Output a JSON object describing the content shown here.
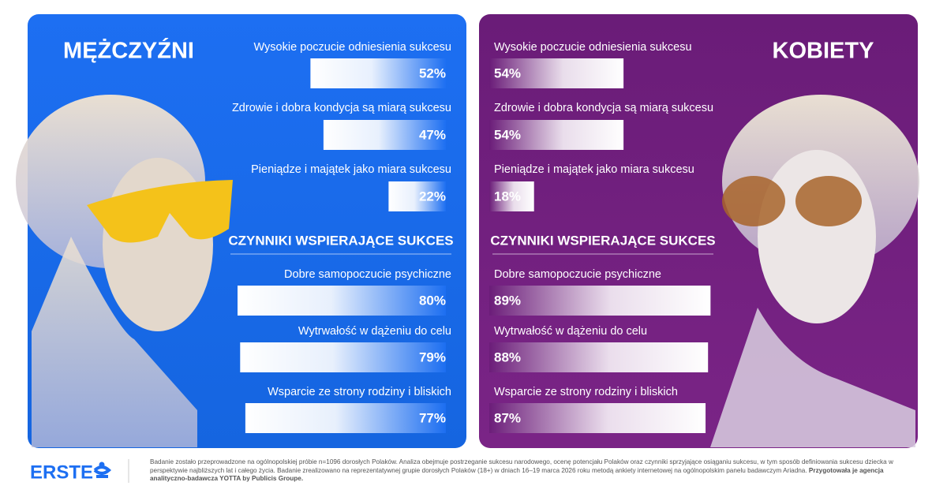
{
  "panels": [
    {
      "title": "MĘŻCZYŹNI",
      "measures": {
        "labels": [
          "Wysokie poczucie odniesienia sukcesu",
          "Zdrowie i dobra kondycja są miarą sukcesu",
          "Pieniądze i majątek jako miara sukcesu"
        ],
        "values": [
          52,
          47,
          22
        ],
        "value_labels": [
          "52%",
          "47%",
          "22%"
        ]
      },
      "factors_heading": "CZYNNIKI WSPIERAJĄCE SUKCES",
      "factors": {
        "labels": [
          "Dobre samopoczucie psychiczne",
          "Wytrwałość w dążeniu do celu",
          "Wsparcie ze strony rodziny i bliskich"
        ],
        "values": [
          80,
          79,
          77
        ],
        "value_labels": [
          "80%",
          "79%",
          "77%"
        ]
      }
    },
    {
      "title": "KOBIETY",
      "measures": {
        "labels": [
          "Wysokie poczucie odniesienia sukcesu",
          "Zdrowie i dobra kondycja są miarą sukcesu",
          "Pieniądze i majątek jako miara sukcesu"
        ],
        "values": [
          54,
          54,
          18
        ],
        "value_labels": [
          "54%",
          "54%",
          "18%"
        ]
      },
      "factors_heading": "CZYNNIKI WSPIERAJĄCE SUKCES",
      "factors": {
        "labels": [
          "Dobre samopoczucie psychiczne",
          "Wytrwałość w dążeniu do celu",
          "Wsparcie ze strony rodziny i bliskich"
        ],
        "values": [
          89,
          88,
          87
        ],
        "value_labels": [
          "89%",
          "88%",
          "87%"
        ]
      }
    }
  ],
  "footer": {
    "logo": "ERSTE",
    "note": "Badanie zostało przeprowadzone na ogólnopolskiej próbie n=1096 dorosłych Polaków. Analiza obejmuje postrzeganie sukcesu narodowego, ocenę potencjału Polaków oraz czynniki sprzyjające osiąganiu sukcesu, w tym sposób definiowania sukcesu dziecka w perspektywie najbliższych lat i całego życia. Badanie zrealizowano na reprezentatywnej grupie dorosłych Polaków (18+) w dniach 16–19 marca 2026 roku metodą ankiety internetowej na ogólnopolskim panelu badawczym Ariadna.",
    "note_bold": "Przygotowała je agencja analityczno-badawcza YOTTA by Publicis Groupe."
  }
}
